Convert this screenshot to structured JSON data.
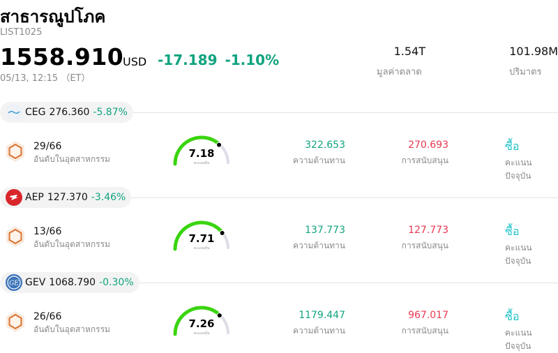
{
  "header": {
    "title": "สาธารณูปโภค",
    "code": "LIST1025",
    "price": "1558.910",
    "currency": "USD",
    "change": "-17.189",
    "change_pct": "-1.10%",
    "time": "05/13, 12:15 （ET）",
    "market_cap_value": "1.54T",
    "market_cap_label": "มูลค่าตลาด",
    "volume_value": "101.98M",
    "volume_label": "ปริมาตร"
  },
  "colors": {
    "up_green": "#10a37f",
    "support_red": "#e8384f",
    "rating_teal": "#20c3c8",
    "gauge_green": "#3ad40f"
  },
  "stocks": [
    {
      "ticker": "CEG",
      "price": "276.360",
      "pct": "-5.87%",
      "rank": "29/66",
      "rank_label": "อันดับในอุตสาหกรรม",
      "score": "7.18",
      "score_fraction": 0.718,
      "score_label": "คะแนนหุ้น",
      "resistance": "322.653",
      "resistance_label": "ความต้านทาน",
      "support": "270.693",
      "support_label": "การสนับสนุน",
      "rating": "ซื้อ",
      "rating_label": "คะแนนปัจจุบัน",
      "logo_icon": "constellation-logo-icon"
    },
    {
      "ticker": "AEP",
      "price": "127.370",
      "pct": "-3.46%",
      "rank": "13/66",
      "rank_label": "อันดับในอุตสาหกรรม",
      "score": "7.71",
      "score_fraction": 0.771,
      "score_label": "คะแนนหุ้น",
      "resistance": "137.773",
      "resistance_label": "ความต้านทาน",
      "support": "127.773",
      "support_label": "การสนับสนุน",
      "rating": "ซื้อ",
      "rating_label": "คะแนนปัจจุบัน",
      "logo_icon": "aep-logo-icon"
    },
    {
      "ticker": "GEV",
      "price": "1068.790",
      "pct": "-0.30%",
      "rank": "26/66",
      "rank_label": "อันดับในอุตสาหกรรม",
      "score": "7.26",
      "score_fraction": 0.726,
      "score_label": "คะแนนหุ้น",
      "resistance": "1179.447",
      "resistance_label": "ความต้านทาน",
      "support": "967.017",
      "support_label": "การสนับสนุน",
      "rating": "ซื้อ",
      "rating_label": "คะแนนปัจจุบัน",
      "logo_icon": "ge-logo-icon"
    }
  ]
}
